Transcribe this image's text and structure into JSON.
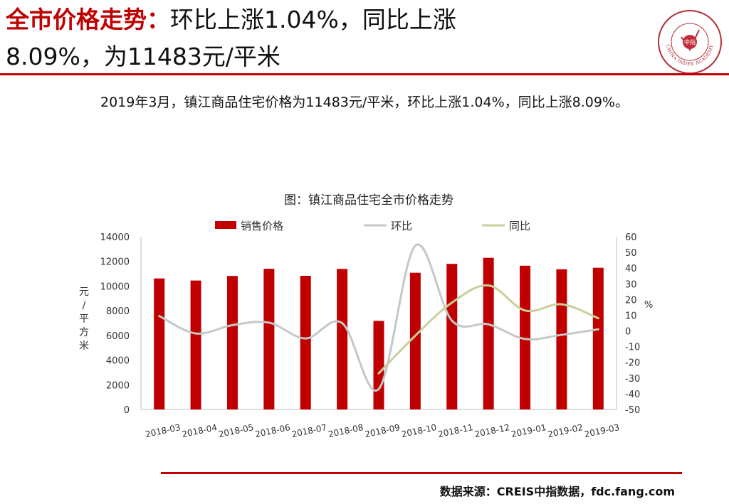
{
  "header": {
    "title_highlight": "全市价格走势：",
    "title_rest": "环比上涨1.04%，同比上涨",
    "title_line2": "8.09%，为11483元/平米"
  },
  "logo": {
    "center_text": "中指",
    "ring_text": "CHINA INDEX ACADEMY"
  },
  "summary": "2019年3月，镇江商品住宅价格为11483元/平米，环比上涨1.04%，同比上涨8.09%。",
  "footer": {
    "source": "数据来源：CREIS中指数据，fdc.fang.com"
  },
  "colors": {
    "accent": "#c00000",
    "bar": "#c00000",
    "mom_line": "#c4c8c8",
    "yoy_line": "#c9cf9a",
    "axis": "#7f7f7f"
  },
  "chart_data": {
    "type": "bar",
    "title": "图：镇江商品住宅全市价格走势",
    "categories": [
      "2018-03",
      "2018-04",
      "2018-05",
      "2018-06",
      "2018-07",
      "2018-08",
      "2018-09",
      "2018-10",
      "2018-11",
      "2018-12",
      "2019-01",
      "2019-02",
      "2019-03"
    ],
    "series": [
      {
        "name": "销售价格",
        "type": "bar",
        "axis": "left",
        "values": [
          10620,
          10450,
          10820,
          11400,
          10830,
          11390,
          7180,
          11080,
          11800,
          12290,
          11650,
          11360,
          11483
        ]
      },
      {
        "name": "环比",
        "type": "line",
        "axis": "right",
        "values": [
          9.5,
          -1.6,
          3.7,
          5.3,
          -4.8,
          5.0,
          -37,
          54.3,
          6.6,
          4.2,
          -5.1,
          -2.5,
          1.04
        ]
      },
      {
        "name": "同比",
        "type": "line",
        "axis": "right",
        "values": [
          null,
          null,
          null,
          null,
          null,
          null,
          -27,
          -3,
          18,
          29,
          13,
          17,
          8.09
        ]
      }
    ],
    "ylabel": "元/平方米",
    "y2label": "%",
    "ylim": [
      0,
      14000
    ],
    "y2lim": [
      -50,
      60
    ],
    "yticks": [
      "14000",
      "12000",
      "10000",
      "8000",
      "6000",
      "4000",
      "2000",
      "0"
    ],
    "y2ticks": [
      "60",
      "50",
      "40",
      "30",
      "20",
      "10",
      "0",
      "-10",
      "-20",
      "-30",
      "-40",
      "-50"
    ],
    "legend_position": "top",
    "grid": false
  }
}
